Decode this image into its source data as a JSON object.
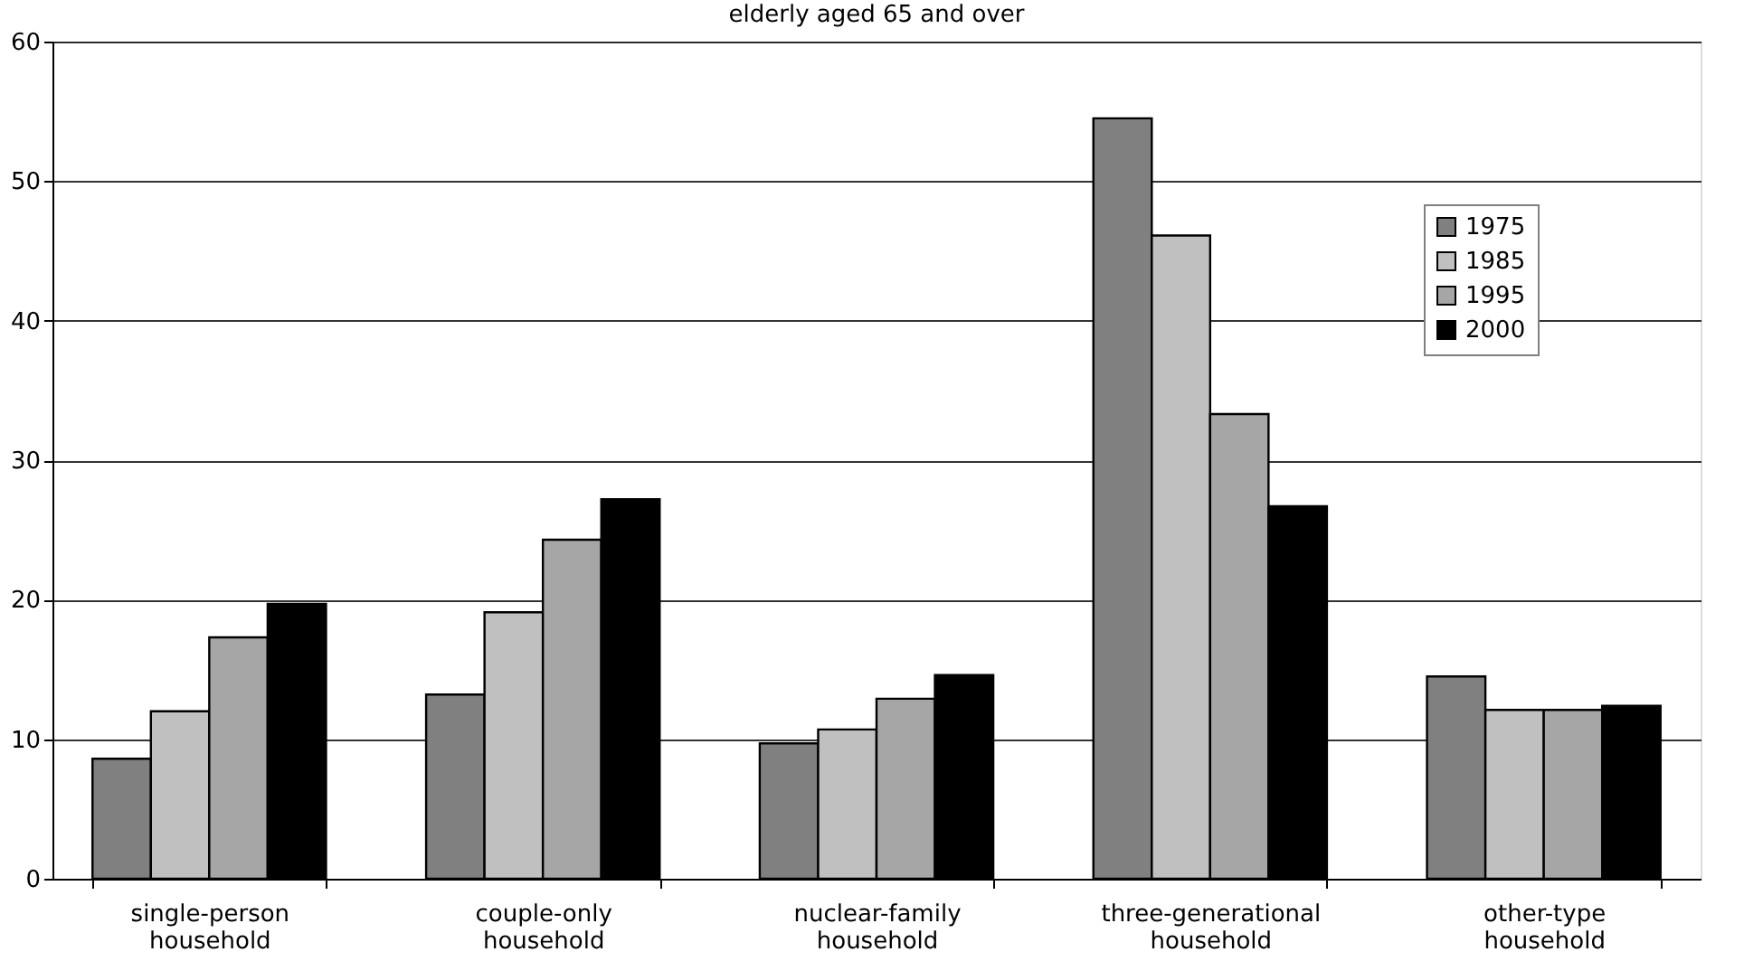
{
  "chart_data": {
    "type": "bar",
    "title": "elderly aged 65 and over",
    "categories": [
      "single-person\nhousehold",
      "couple-only\nhousehold",
      "nuclear-family\nhousehold",
      "three-generational\nhousehold",
      "other-type\nhousehold"
    ],
    "series": [
      {
        "name": "1975",
        "color": "#808080",
        "values": [
          8.6,
          13.2,
          9.7,
          54.5,
          14.5
        ]
      },
      {
        "name": "1985",
        "color": "#c0c0c0",
        "values": [
          12.0,
          19.1,
          10.7,
          46.1,
          12.1
        ]
      },
      {
        "name": "1995",
        "color": "#a6a6a6",
        "values": [
          17.3,
          24.3,
          12.9,
          33.3,
          12.1
        ]
      },
      {
        "name": "2000",
        "color": "#000000",
        "values": [
          19.7,
          27.2,
          14.6,
          26.7,
          12.4
        ]
      }
    ],
    "ylim": [
      0,
      60
    ],
    "yticks": [
      0,
      10,
      20,
      30,
      40,
      50,
      60
    ],
    "grid": "y",
    "legend": "top right"
  }
}
